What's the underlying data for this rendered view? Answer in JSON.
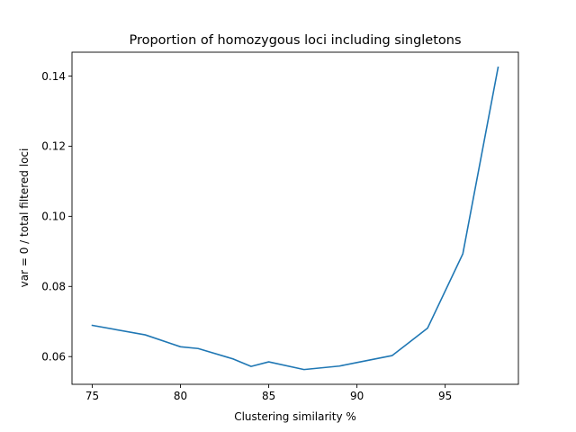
{
  "chart_data": {
    "type": "line",
    "title": "Proportion of homozygous loci including singletons",
    "xlabel": "Clustering similarity %",
    "ylabel": "var = 0 / total filtered loci",
    "xlim": [
      73.85,
      99.15
    ],
    "ylim": [
      0.0521,
      0.1468
    ],
    "xticks": [
      75,
      80,
      85,
      90,
      95
    ],
    "yticks": [
      0.06,
      0.08,
      0.1,
      0.12,
      0.14
    ],
    "ytick_labels": [
      "0.06",
      "0.08",
      "0.10",
      "0.12",
      "0.14"
    ],
    "grid": false,
    "series": [
      {
        "x": [
          75,
          78,
          80,
          81,
          83,
          84,
          85,
          87,
          89,
          90,
          92,
          94,
          96,
          98
        ],
        "values": [
          0.0689,
          0.0662,
          0.0628,
          0.0623,
          0.0593,
          0.0572,
          0.0585,
          0.0563,
          0.0573,
          0.0583,
          0.0603,
          0.0681,
          0.0893,
          0.1425
        ],
        "color": "#1f77b4"
      }
    ]
  }
}
